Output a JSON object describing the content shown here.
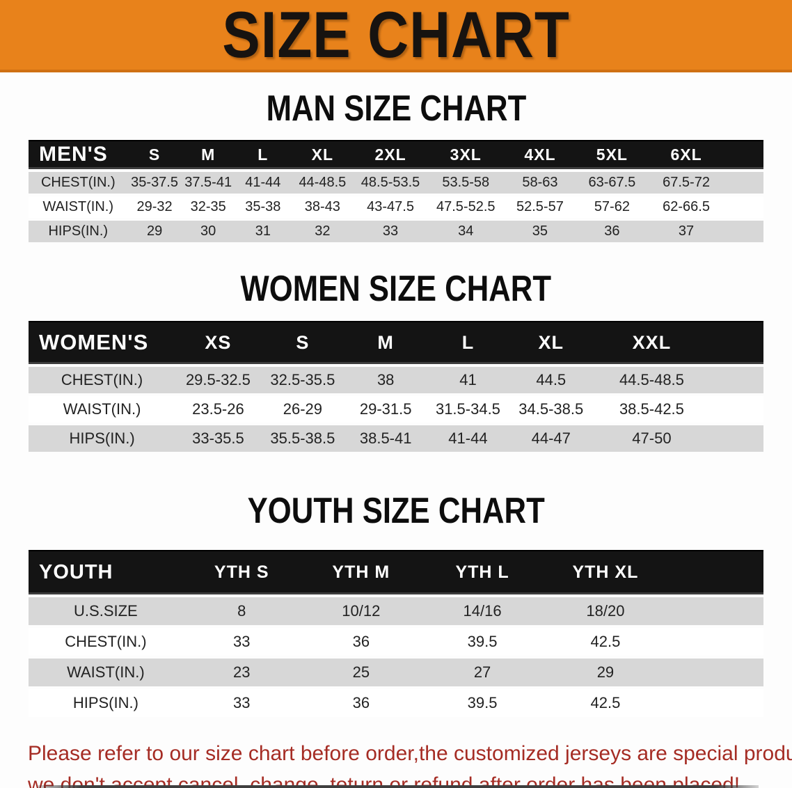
{
  "banner": {
    "title": "SIZE CHART"
  },
  "colors": {
    "banner_orange": "#E8821B",
    "table_header_black": "#141414",
    "row_stripe_gray": "#D7D7D7",
    "disclaimer_red": "#A52C24"
  },
  "sections": [
    {
      "heading": "MAN SIZE CHART",
      "table": {
        "corner_label": "MEN'S",
        "columns": [
          "S",
          "M",
          "L",
          "XL",
          "2XL",
          "3XL",
          "4XL",
          "5XL",
          "6XL"
        ],
        "rows": [
          {
            "label": "CHEST(IN.)",
            "values": [
              "35-37.5",
              "37.5-41",
              "41-44",
              "44-48.5",
              "48.5-53.5",
              "53.5-58",
              "58-63",
              "63-67.5",
              "67.5-72"
            ]
          },
          {
            "label": "WAIST(IN.)",
            "values": [
              "29-32",
              "32-35",
              "35-38",
              "38-43",
              "43-47.5",
              "47.5-52.5",
              "52.5-57",
              "57-62",
              "62-66.5"
            ]
          },
          {
            "label": "HIPS(IN.)",
            "values": [
              "29",
              "30",
              "31",
              "32",
              "33",
              "34",
              "35",
              "36",
              "37"
            ]
          }
        ]
      }
    },
    {
      "heading": "WOMEN SIZE CHART",
      "table": {
        "corner_label": "WOMEN'S",
        "columns": [
          "XS",
          "S",
          "M",
          "L",
          "XL",
          "XXL"
        ],
        "rows": [
          {
            "label": "CHEST(IN.)",
            "values": [
              "29.5-32.5",
              "32.5-35.5",
              "38",
              "41",
              "44.5",
              "44.5-48.5"
            ]
          },
          {
            "label": "WAIST(IN.)",
            "values": [
              "23.5-26",
              "26-29",
              "29-31.5",
              "31.5-34.5",
              "34.5-38.5",
              "38.5-42.5"
            ]
          },
          {
            "label": "HIPS(IN.)",
            "values": [
              "33-35.5",
              "35.5-38.5",
              "38.5-41",
              "41-44",
              "44-47",
              "47-50"
            ]
          }
        ]
      }
    },
    {
      "heading": "YOUTH SIZE CHART",
      "table": {
        "corner_label": "YOUTH",
        "columns": [
          "YTH S",
          "YTH M",
          "YTH L",
          "YTH XL"
        ],
        "rows": [
          {
            "label": "U.S.SIZE",
            "values": [
              "8",
              "10/12",
              "14/16",
              "18/20"
            ]
          },
          {
            "label": "CHEST(IN.)",
            "values": [
              "33",
              "36",
              "39.5",
              "42.5"
            ]
          },
          {
            "label": "WAIST(IN.)",
            "values": [
              "23",
              "25",
              "27",
              "29"
            ]
          },
          {
            "label": "HIPS(IN.)",
            "values": [
              "33",
              "36",
              "39.5",
              "42.5"
            ]
          }
        ]
      }
    }
  ],
  "disclaimer": {
    "line1": "Please refer to our size chart before order,the customized jerseys are special products,",
    "line2": "we don't accept cancel, change, teturn or refund after order has been placed!"
  }
}
